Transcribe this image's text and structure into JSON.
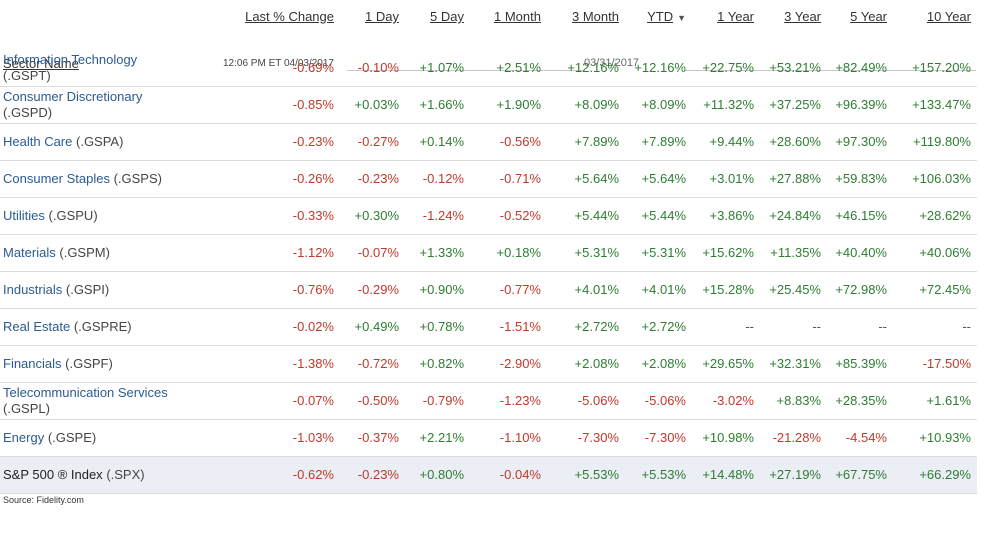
{
  "header": {
    "sector_label": "Sector Name",
    "timestamp": "12:06 PM ET 04/03/2017",
    "as_of": "03/31/2017",
    "columns": [
      "Last % Change",
      "1 Day",
      "5 Day",
      "1 Month",
      "3 Month",
      "YTD",
      "1 Year",
      "3 Year",
      "5 Year",
      "10 Year"
    ],
    "sorted_column": "YTD",
    "sort_direction": "descending"
  },
  "rows": [
    {
      "name": "Information Technology",
      "symbol": "(.GSPT)",
      "values": [
        "-0.69%",
        "-0.10%",
        "+1.07%",
        "+2.51%",
        "+12.16%",
        "+12.16%",
        "+22.75%",
        "+53.21%",
        "+82.49%",
        "+157.20%"
      ]
    },
    {
      "name": "Consumer Discretionary",
      "symbol": "(.GSPD)",
      "values": [
        "-0.85%",
        "+0.03%",
        "+1.66%",
        "+1.90%",
        "+8.09%",
        "+8.09%",
        "+11.32%",
        "+37.25%",
        "+96.39%",
        "+133.47%"
      ]
    },
    {
      "name": "Health Care",
      "symbol": "(.GSPA)",
      "values": [
        "-0.23%",
        "-0.27%",
        "+0.14%",
        "-0.56%",
        "+7.89%",
        "+7.89%",
        "+9.44%",
        "+28.60%",
        "+97.30%",
        "+119.80%"
      ]
    },
    {
      "name": "Consumer Staples",
      "symbol": "(.GSPS)",
      "values": [
        "-0.26%",
        "-0.23%",
        "-0.12%",
        "-0.71%",
        "+5.64%",
        "+5.64%",
        "+3.01%",
        "+27.88%",
        "+59.83%",
        "+106.03%"
      ]
    },
    {
      "name": "Utilities",
      "symbol": "(.GSPU)",
      "values": [
        "-0.33%",
        "+0.30%",
        "-1.24%",
        "-0.52%",
        "+5.44%",
        "+5.44%",
        "+3.86%",
        "+24.84%",
        "+46.15%",
        "+28.62%"
      ]
    },
    {
      "name": "Materials",
      "symbol": "(.GSPM)",
      "values": [
        "-1.12%",
        "-0.07%",
        "+1.33%",
        "+0.18%",
        "+5.31%",
        "+5.31%",
        "+15.62%",
        "+11.35%",
        "+40.40%",
        "+40.06%"
      ]
    },
    {
      "name": "Industrials",
      "symbol": "(.GSPI)",
      "values": [
        "-0.76%",
        "-0.29%",
        "+0.90%",
        "-0.77%",
        "+4.01%",
        "+4.01%",
        "+15.28%",
        "+25.45%",
        "+72.98%",
        "+72.45%"
      ]
    },
    {
      "name": "Real Estate",
      "symbol": "(.GSPRE)",
      "values": [
        "-0.02%",
        "+0.49%",
        "+0.78%",
        "-1.51%",
        "+2.72%",
        "+2.72%",
        "--",
        "--",
        "--",
        "--"
      ]
    },
    {
      "name": "Financials",
      "symbol": "(.GSPF)",
      "values": [
        "-1.38%",
        "-0.72%",
        "+0.82%",
        "-2.90%",
        "+2.08%",
        "+2.08%",
        "+29.65%",
        "+32.31%",
        "+85.39%",
        "-17.50%"
      ]
    },
    {
      "name": "Telecommunication Services",
      "symbol": "(.GSPL)",
      "values": [
        "-0.07%",
        "-0.50%",
        "-0.79%",
        "-1.23%",
        "-5.06%",
        "-5.06%",
        "-3.02%",
        "+8.83%",
        "+28.35%",
        "+1.61%"
      ]
    },
    {
      "name": "Energy",
      "symbol": "(.GSPE)",
      "values": [
        "-1.03%",
        "-0.37%",
        "+2.21%",
        "-1.10%",
        "-7.30%",
        "-7.30%",
        "+10.98%",
        "-21.28%",
        "-4.54%",
        "+10.93%"
      ]
    },
    {
      "name": "S&P 500 ® Index",
      "symbol": "(.SPX)",
      "values": [
        "-0.62%",
        "-0.23%",
        "+0.80%",
        "-0.04%",
        "+5.53%",
        "+5.53%",
        "+14.48%",
        "+27.19%",
        "+67.75%",
        "+66.29%"
      ],
      "is_index": true
    }
  ],
  "source": "Source: Fidelity.com",
  "colors": {
    "negative": "#c0392b",
    "positive": "#2e7d32",
    "link": "#2a5b94",
    "index_row_bg": "#ebeef4"
  }
}
